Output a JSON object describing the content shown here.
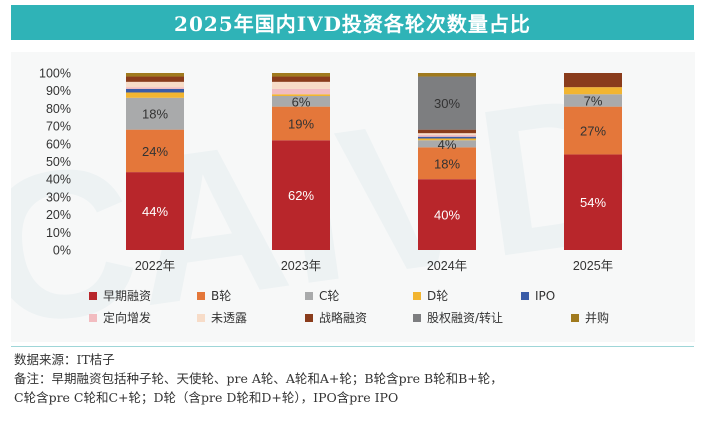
{
  "header": {
    "title": "2025年国内IVD投资各轮次数量占比"
  },
  "footer": {
    "source": "数据来源：IT桔子",
    "note_line1": "备注：早期融资包括种子轮、天使轮、pre A轮、A轮和A+轮；B轮含pre B轮和B+轮，",
    "note_line2": "C轮含pre C轮和C+轮；D轮（含pre D轮和D+轮），IPO含pre IPO"
  },
  "watermark": {
    "text": "CAIVD"
  },
  "chart_data": {
    "type": "bar",
    "stacked": true,
    "categories": [
      "2022年",
      "2023年",
      "2024年",
      "2025年"
    ],
    "ylim": [
      0,
      100
    ],
    "yticks": [
      "0%",
      "10%",
      "20%",
      "30%",
      "40%",
      "50%",
      "60%",
      "70%",
      "80%",
      "90%",
      "100%"
    ],
    "legend_position": "bottom",
    "grid": false,
    "series": [
      {
        "name": "早期融资",
        "color": "#b8262b",
        "values": [
          44,
          62,
          40,
          54
        ],
        "labels": [
          "44%",
          "62%",
          "40%",
          "54%"
        ]
      },
      {
        "name": "B轮",
        "color": "#e4773a",
        "values": [
          24,
          19,
          18,
          27
        ],
        "labels": [
          "24%",
          "19%",
          "18%",
          "27%"
        ]
      },
      {
        "name": "C轮",
        "color": "#a9aaab",
        "values": [
          18,
          6,
          4,
          7
        ],
        "labels": [
          "18%",
          "6%",
          "4%",
          "7%"
        ]
      },
      {
        "name": "D轮",
        "color": "#f2b531",
        "values": [
          3,
          1,
          1,
          4
        ],
        "labels": [
          "",
          "",
          "",
          ""
        ]
      },
      {
        "name": "IPO",
        "color": "#3a5ca8",
        "values": [
          2,
          0,
          1,
          0
        ],
        "labels": [
          "",
          "",
          "",
          ""
        ]
      },
      {
        "name": "定向增发",
        "color": "#f2bcc0",
        "values": [
          1,
          3,
          1,
          0
        ],
        "labels": [
          "",
          "",
          "",
          ""
        ]
      },
      {
        "name": "未透露",
        "color": "#f7dcc8",
        "values": [
          3,
          4,
          1,
          0
        ],
        "labels": [
          "",
          "",
          "",
          ""
        ]
      },
      {
        "name": "战略融资",
        "color": "#8a3c1c",
        "values": [
          3,
          3,
          2,
          8
        ],
        "labels": [
          "",
          "",
          "",
          ""
        ]
      },
      {
        "name": "股权融资/转让",
        "color": "#7d7e80",
        "values": [
          0,
          0,
          30,
          0
        ],
        "labels": [
          "",
          "",
          "30%",
          ""
        ]
      },
      {
        "name": "并购",
        "color": "#a07a1e",
        "values": [
          2,
          2,
          2,
          0
        ],
        "labels": [
          "",
          "",
          "",
          ""
        ]
      }
    ]
  }
}
